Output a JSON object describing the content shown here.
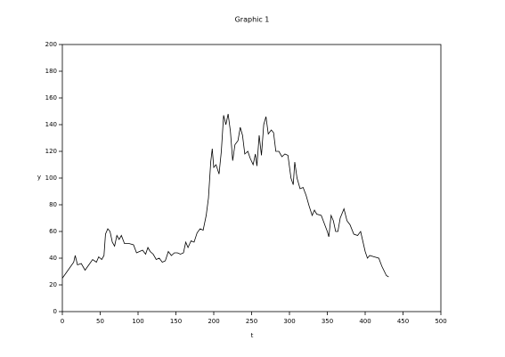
{
  "chart_data": {
    "type": "line",
    "title": "Graphic 1",
    "x_label": "t",
    "y_label": "y",
    "x": [
      0,
      5,
      10,
      15,
      17,
      20,
      25,
      30,
      35,
      40,
      45,
      48,
      52,
      55,
      57,
      60,
      63,
      66,
      69,
      72,
      75,
      78,
      82,
      88,
      94,
      98,
      102,
      106,
      110,
      113,
      116,
      120,
      124,
      128,
      132,
      136,
      140,
      144,
      148,
      152,
      156,
      160,
      163,
      166,
      170,
      174,
      178,
      182,
      186,
      190,
      193,
      196,
      198,
      200,
      203,
      207,
      210,
      213,
      216,
      219,
      222,
      225,
      228,
      232,
      235,
      238,
      241,
      245,
      248,
      252,
      255,
      257,
      260,
      263,
      266,
      269,
      272,
      276,
      279,
      282,
      286,
      290,
      294,
      298,
      302,
      305,
      307,
      310,
      314,
      318,
      322,
      326,
      330,
      333,
      336,
      342,
      346,
      350,
      352,
      355,
      358,
      361,
      364,
      367,
      372,
      376,
      380,
      385,
      390,
      394,
      396,
      400,
      403,
      406,
      412,
      418,
      422,
      428,
      431
    ],
    "series": [
      {
        "color": "#000000",
        "values": [
          25,
          29,
          33,
          37,
          42,
          35,
          36,
          31,
          35,
          39,
          37,
          41,
          39,
          42,
          58,
          62,
          60,
          52,
          49,
          57,
          54,
          57,
          51,
          51,
          50,
          44,
          45,
          46,
          43,
          48,
          45,
          43,
          39,
          40,
          37,
          38,
          45,
          42,
          44,
          44,
          43,
          44,
          52,
          48,
          53,
          52,
          59,
          62,
          61,
          72,
          85,
          112,
          122,
          108,
          110,
          103,
          120,
          147,
          140,
          148,
          135,
          113,
          125,
          128,
          138,
          132,
          118,
          120,
          115,
          110,
          118,
          109,
          132,
          117,
          140,
          146,
          133,
          136,
          134,
          120,
          120,
          116,
          118,
          117,
          100,
          95,
          112,
          100,
          92,
          93,
          87,
          79,
          72,
          76,
          73,
          72,
          66,
          60,
          56,
          72,
          68,
          60,
          60,
          70,
          77,
          68,
          65,
          58,
          57,
          60,
          55,
          45,
          40,
          42,
          41,
          40,
          34,
          27,
          26
        ]
      }
    ],
    "xlim": [
      0,
      500
    ],
    "ylim": [
      0,
      200
    ],
    "xticks": [
      0,
      50,
      100,
      150,
      200,
      250,
      300,
      350,
      400,
      450,
      500
    ],
    "yticks": [
      0,
      20,
      40,
      60,
      80,
      100,
      120,
      140,
      160,
      180,
      200
    ]
  }
}
